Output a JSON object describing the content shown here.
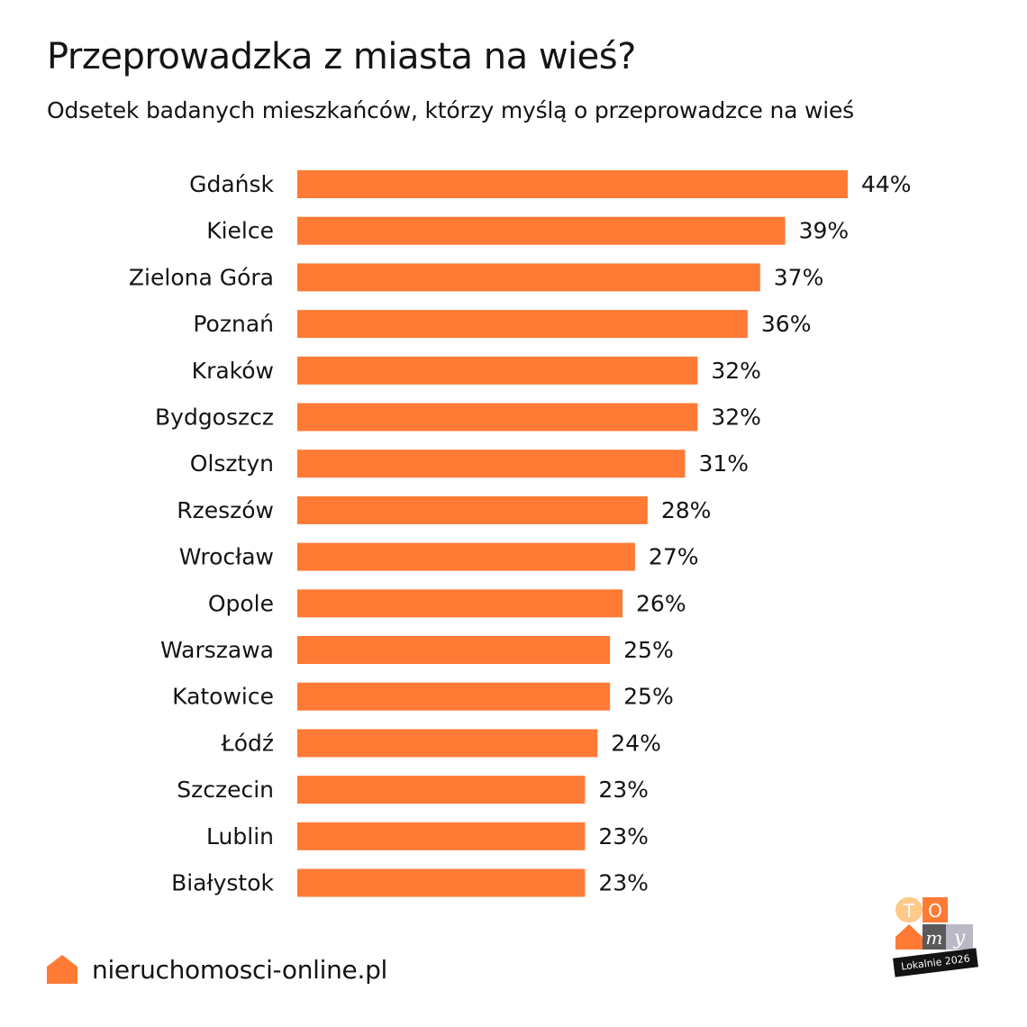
{
  "header": {
    "title": "Przeprowadzka z miasta na wieś?",
    "subtitle": "Odsetek badanych mieszkańców, którzy myślą o przeprowadzce na wieś"
  },
  "colors": {
    "bar": "#FF7A35",
    "text": "#141414"
  },
  "chart_data": {
    "type": "bar",
    "orientation": "horizontal",
    "title": "Przeprowadzka z miasta na wieś?",
    "subtitle": "Odsetek badanych mieszkańców, którzy myślą o przeprowadzce na wieś",
    "xlabel": "",
    "ylabel": "",
    "unit": "%",
    "xlim": [
      0,
      44
    ],
    "grid": false,
    "categories": [
      "Gdańsk",
      "Kielce",
      "Zielona Góra",
      "Poznań",
      "Kraków",
      "Bydgoszcz",
      "Olsztyn",
      "Rzeszów",
      "Wrocław",
      "Opole",
      "Warszawa",
      "Katowice",
      "Łódź",
      "Szczecin",
      "Lublin",
      "Białystok"
    ],
    "values": [
      44,
      39,
      37,
      36,
      32,
      32,
      31,
      28,
      27,
      26,
      25,
      25,
      24,
      23,
      23,
      23
    ],
    "labels": [
      "44%",
      "39%",
      "37%",
      "36%",
      "32%",
      "32%",
      "31%",
      "28%",
      "27%",
      "26%",
      "25%",
      "25%",
      "24%",
      "23%",
      "23%",
      "23%"
    ]
  },
  "footer": {
    "site": "nieruchomosci-online.pl"
  },
  "badge": {
    "logo_letters": [
      "T",
      "O",
      "m",
      "y"
    ],
    "caption": "Lokalnie 2026"
  }
}
